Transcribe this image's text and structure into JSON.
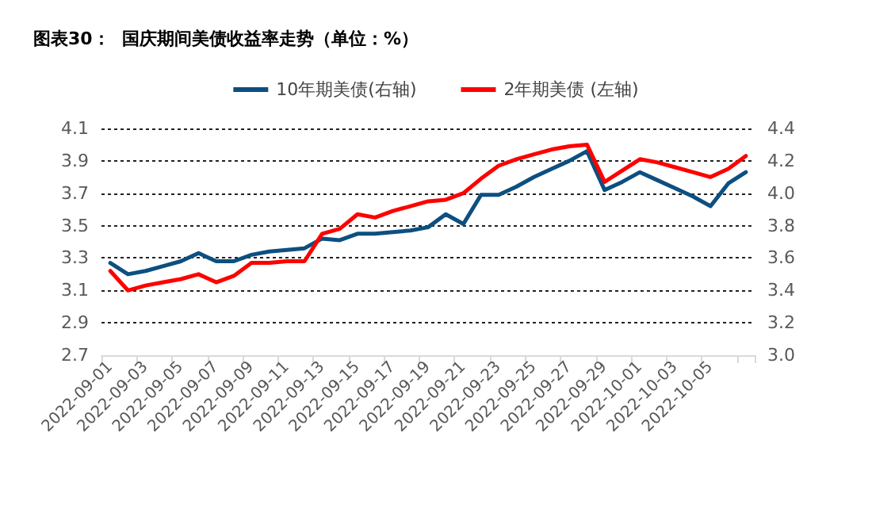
{
  "chart_data": {
    "type": "line",
    "title": "图表30：  国庆期间美债收益率走势（单位：%）",
    "categories": [
      "2022-09-01",
      null,
      "2022-09-03",
      null,
      "2022-09-05",
      null,
      "2022-09-07",
      null,
      "2022-09-09",
      null,
      "2022-09-11",
      null,
      "2022-09-13",
      null,
      "2022-09-15",
      null,
      "2022-09-17",
      null,
      "2022-09-19",
      null,
      "2022-09-21",
      null,
      "2022-09-23",
      null,
      "2022-09-25",
      null,
      "2022-09-27",
      null,
      "2022-09-29",
      null,
      "2022-10-01",
      null,
      "2022-10-03",
      null,
      "2022-10-05",
      null,
      null
    ],
    "series": [
      {
        "name": "10年期美债(右轴)",
        "color": "#0d4f80",
        "axis": "y",
        "values": [
          3.27,
          3.2,
          3.22,
          3.25,
          3.28,
          3.33,
          3.28,
          3.28,
          3.32,
          3.34,
          3.35,
          3.36,
          3.42,
          3.41,
          3.45,
          3.45,
          3.46,
          3.47,
          3.49,
          3.57,
          3.51,
          3.69,
          3.69,
          3.74,
          3.8,
          3.85,
          3.9,
          3.96,
          3.72,
          3.77,
          3.83,
          3.78,
          3.73,
          3.68,
          3.62,
          3.76,
          3.83
        ]
      },
      {
        "name": "2年期美债 (左轴)",
        "color": "#ff0000",
        "axis": "y2",
        "values": [
          3.52,
          3.4,
          3.43,
          3.45,
          3.47,
          3.5,
          3.45,
          3.49,
          3.57,
          3.57,
          3.58,
          3.58,
          3.75,
          3.78,
          3.87,
          3.85,
          3.89,
          3.92,
          3.95,
          3.96,
          4.0,
          4.09,
          4.17,
          4.21,
          4.24,
          4.27,
          4.29,
          4.3,
          4.07,
          4.14,
          4.21,
          4.19,
          4.16,
          4.13,
          4.1,
          4.15,
          4.23
        ]
      }
    ],
    "ylim": [
      2.7,
      4.1
    ],
    "yticks": [
      2.7,
      2.9,
      3.1,
      3.3,
      3.5,
      3.7,
      3.9,
      4.1
    ],
    "y2lim": [
      3.0,
      4.4
    ],
    "y2ticks": [
      {
        "value": 3.0,
        "label": "3.0"
      },
      3.2,
      3.4,
      3.6,
      3.8,
      {
        "value": 4.0,
        "label": "4.0"
      },
      4.2,
      4.4
    ],
    "grid": "y",
    "legend": "top",
    "marker": "none",
    "line_style": "solid"
  }
}
